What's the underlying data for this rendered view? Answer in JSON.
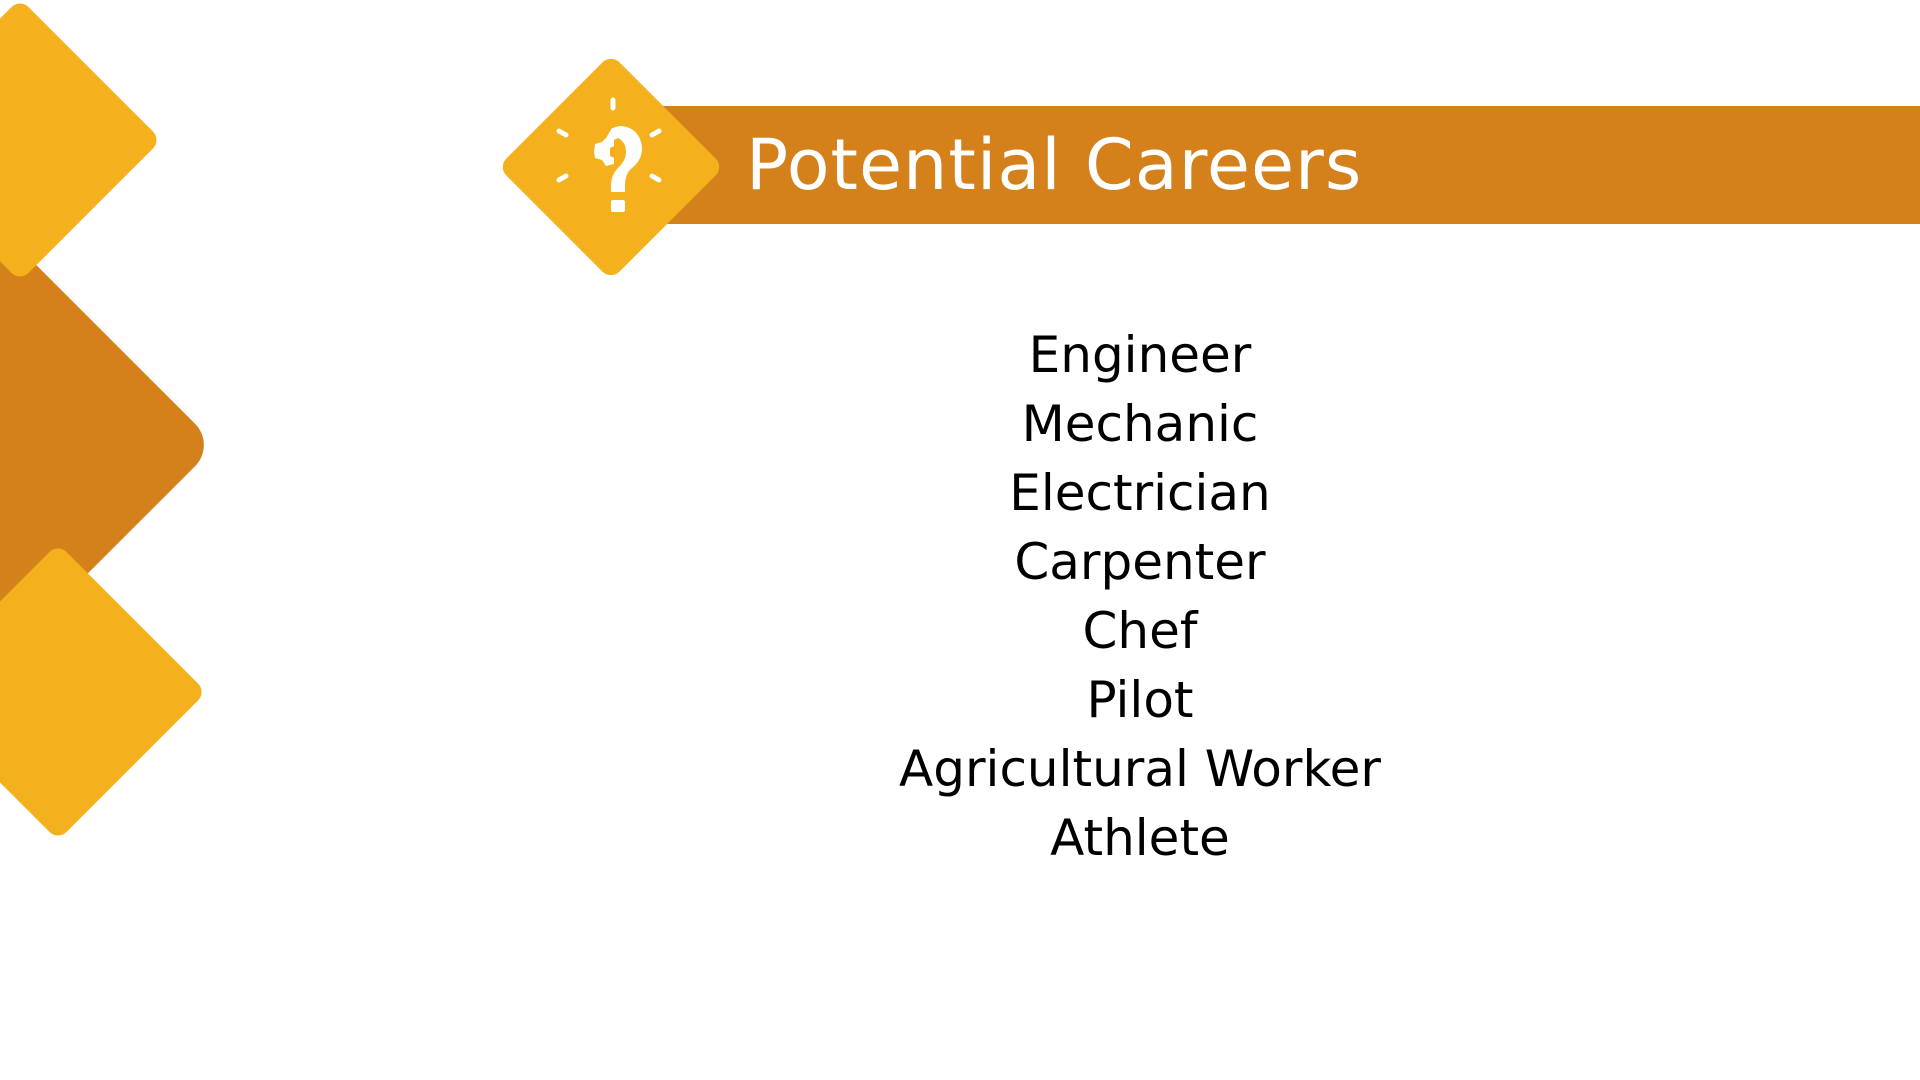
{
  "slide": {
    "title": "Potential Careers",
    "title_icon": "lightbulb-gear-icon"
  },
  "careers": [
    "Engineer",
    "Mechanic",
    "Electrician",
    "Carpenter",
    "Chef",
    "Pilot",
    "Agricultural Worker",
    "Athlete"
  ],
  "colors": {
    "accent_dark": "#D4811C",
    "accent_light": "#F4B01D",
    "title_text": "#FFFFFF",
    "body_text": "#000000"
  }
}
